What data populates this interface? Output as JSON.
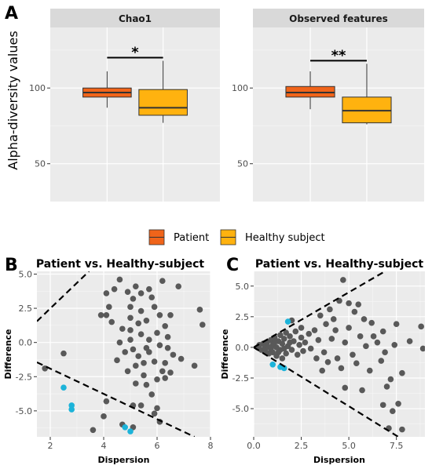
{
  "panel_labels": {
    "a": "A",
    "b": "B",
    "c": "C"
  },
  "legend": {
    "items": [
      {
        "label": "Patient",
        "color": "#f0641a"
      },
      {
        "label": "Healthy subject",
        "color": "#ffb20f"
      }
    ]
  },
  "chart_data": [
    {
      "type": "boxplot",
      "facet": "Chao1",
      "ylabel": "Alpha-diversity values",
      "ylim": [
        25,
        140
      ],
      "yticks": [
        50,
        100
      ],
      "significance": "*",
      "series": [
        {
          "name": "Patient",
          "color": "#f0641a",
          "whisker_low": 87,
          "q1": 94,
          "median": 97,
          "q3": 100,
          "whisker_high": 111
        },
        {
          "name": "Healthy subject",
          "color": "#ffb20f",
          "whisker_low": 77,
          "q1": 82,
          "median": 87,
          "q3": 99,
          "whisker_high": 118
        }
      ]
    },
    {
      "type": "boxplot",
      "facet": "Observed features",
      "ylim": [
        25,
        140
      ],
      "yticks": [
        50,
        100
      ],
      "significance": "**",
      "series": [
        {
          "name": "Patient",
          "color": "#f0641a",
          "whisker_low": 86,
          "q1": 94,
          "median": 97,
          "q3": 101,
          "whisker_high": 111
        },
        {
          "name": "Healthy subject",
          "color": "#ffb20f",
          "whisker_low": 76,
          "q1": 77,
          "median": 85,
          "q3": 94,
          "whisker_high": 116
        }
      ]
    },
    {
      "type": "scatter",
      "title": "Patient vs. Healthy-subject",
      "xlabel": "Dispersion",
      "ylabel": "Difference",
      "xlim": [
        1.5,
        8.0
      ],
      "ylim": [
        -6.9,
        5.2
      ],
      "xticks": [
        2,
        4,
        6,
        8
      ],
      "yticks": [
        -5.0,
        -2.5,
        0.0,
        2.5,
        5.0
      ],
      "ytick_labels": [
        "-5.0",
        "-2.5",
        "0.0",
        "2.5",
        "5.0"
      ],
      "reference_lines": [
        {
          "x1": 1.5,
          "y1": 1.55,
          "x2": 3.45,
          "y2": 5.2
        },
        {
          "x1": 1.5,
          "y1": -1.45,
          "x2": 7.4,
          "y2": -6.9
        }
      ],
      "colors": {
        "normal": "#595959",
        "highlight": "#1cb3d9"
      },
      "points": [
        [
          2.5,
          -0.8,
          0
        ],
        [
          1.8,
          -1.9,
          0
        ],
        [
          4.1,
          -4.3,
          0
        ],
        [
          4.0,
          -5.4,
          0
        ],
        [
          3.6,
          -6.4,
          0
        ],
        [
          5.1,
          -6.2,
          0
        ],
        [
          4.7,
          -6.0,
          0
        ],
        [
          6.1,
          -5.8,
          0
        ],
        [
          6.0,
          -4.8,
          0
        ],
        [
          5.9,
          -5.2,
          0
        ],
        [
          3.9,
          2.0,
          0
        ],
        [
          4.1,
          2.0,
          0
        ],
        [
          4.3,
          1.5,
          0
        ],
        [
          4.2,
          2.6,
          0
        ],
        [
          4.1,
          3.6,
          0
        ],
        [
          4.4,
          3.9,
          0
        ],
        [
          4.6,
          4.6,
          0
        ],
        [
          4.9,
          3.7,
          0
        ],
        [
          5.0,
          2.6,
          0
        ],
        [
          5.0,
          1.8,
          0
        ],
        [
          4.7,
          1.0,
          0
        ],
        [
          5.2,
          4.1,
          0
        ],
        [
          5.4,
          3.6,
          0
        ],
        [
          5.7,
          3.9,
          0
        ],
        [
          5.8,
          3.3,
          0
        ],
        [
          5.9,
          2.6,
          0
        ],
        [
          6.1,
          2.0,
          0
        ],
        [
          6.2,
          4.5,
          0
        ],
        [
          6.8,
          4.1,
          0
        ],
        [
          7.6,
          2.4,
          0
        ],
        [
          7.7,
          1.3,
          0
        ],
        [
          6.5,
          2.0,
          0
        ],
        [
          6.3,
          1.2,
          0
        ],
        [
          6.0,
          0.7,
          0
        ],
        [
          5.6,
          1.6,
          0
        ],
        [
          5.3,
          1.4,
          0
        ],
        [
          5.0,
          0.9,
          0
        ],
        [
          5.4,
          0.6,
          0
        ],
        [
          5.7,
          0.2,
          0
        ],
        [
          6.1,
          -0.2,
          0
        ],
        [
          6.4,
          -0.4,
          0
        ],
        [
          6.6,
          -0.9,
          0
        ],
        [
          6.9,
          -1.2,
          0
        ],
        [
          7.4,
          -1.7,
          0
        ],
        [
          5.0,
          0.2,
          0
        ],
        [
          4.6,
          0.0,
          0
        ],
        [
          4.5,
          -1.3,
          0
        ],
        [
          4.9,
          -2.1,
          0
        ],
        [
          5.2,
          -1.7,
          0
        ],
        [
          5.5,
          -2.4,
          0
        ],
        [
          5.3,
          -1.0,
          0
        ],
        [
          5.7,
          -0.7,
          0
        ],
        [
          5.9,
          -1.4,
          0
        ],
        [
          6.2,
          -2.1,
          0
        ],
        [
          6.3,
          -2.6,
          0
        ],
        [
          6.0,
          -2.7,
          0
        ],
        [
          5.6,
          -3.1,
          0
        ],
        [
          5.8,
          -3.8,
          0
        ],
        [
          5.4,
          -4.6,
          0
        ],
        [
          5.1,
          -4.6,
          0
        ],
        [
          5.6,
          -0.4,
          0
        ],
        [
          6.4,
          0.4,
          0
        ],
        [
          5.1,
          -0.5,
          0
        ],
        [
          4.8,
          -0.7,
          0
        ],
        [
          5.5,
          -1.5,
          0
        ],
        [
          6.3,
          -1.5,
          0
        ],
        [
          5.2,
          -3.0,
          0
        ],
        [
          6.5,
          -2.2,
          0
        ],
        [
          5.4,
          2.3,
          0
        ],
        [
          5.1,
          3.2,
          0
        ],
        [
          2.5,
          -3.3,
          1
        ],
        [
          2.8,
          -4.6,
          1
        ],
        [
          2.8,
          -4.9,
          1
        ],
        [
          4.8,
          -6.2,
          1
        ],
        [
          5.0,
          -6.5,
          1
        ]
      ]
    },
    {
      "type": "scatter",
      "title": "Patient vs. Healthy-subject",
      "xlabel": "Dispersion",
      "ylabel": "Difference",
      "xlim": [
        0.0,
        9.0
      ],
      "ylim": [
        -7.3,
        6.2
      ],
      "xticks": [
        0.0,
        2.5,
        5.0,
        7.5
      ],
      "xtick_labels": [
        "0.0",
        "2.5",
        "5.0",
        "7.5"
      ],
      "yticks": [
        -5.0,
        -2.5,
        0.0,
        2.5,
        5.0
      ],
      "ytick_labels": [
        "-5.0",
        "-2.5",
        "0.0",
        "2.5",
        "5.0"
      ],
      "reference_lines": [
        {
          "x1": 0.0,
          "y1": 0.0,
          "x2": 6.9,
          "y2": 6.2
        },
        {
          "x1": 0.0,
          "y1": 0.0,
          "x2": 7.6,
          "y2": -7.3
        }
      ],
      "colors": {
        "normal": "#595959",
        "highlight": "#1cb3d9"
      },
      "points": [
        [
          0.2,
          0.0,
          0
        ],
        [
          0.3,
          0.2,
          0
        ],
        [
          0.4,
          -0.2,
          0
        ],
        [
          0.5,
          0.3,
          0
        ],
        [
          0.6,
          0.1,
          0
        ],
        [
          0.6,
          -0.3,
          0
        ],
        [
          0.7,
          0.4,
          0
        ],
        [
          0.8,
          0.0,
          0
        ],
        [
          0.8,
          -0.5,
          0
        ],
        [
          0.9,
          0.6,
          0
        ],
        [
          1.0,
          0.2,
          0
        ],
        [
          1.0,
          -0.4,
          0
        ],
        [
          1.1,
          0.8,
          0
        ],
        [
          1.2,
          0.0,
          0
        ],
        [
          1.2,
          -0.7,
          0
        ],
        [
          1.3,
          0.5,
          0
        ],
        [
          1.4,
          1.0,
          0
        ],
        [
          1.4,
          -0.2,
          0
        ],
        [
          1.5,
          0.3,
          0
        ],
        [
          1.5,
          -0.9,
          0
        ],
        [
          1.6,
          0.7,
          0
        ],
        [
          1.7,
          1.2,
          0
        ],
        [
          1.7,
          -0.5,
          0
        ],
        [
          1.8,
          0.1,
          0
        ],
        [
          1.9,
          0.9,
          0
        ],
        [
          2.0,
          -0.2,
          0
        ],
        [
          2.1,
          0.5,
          0
        ],
        [
          2.2,
          1.3,
          0
        ],
        [
          2.3,
          -0.6,
          0
        ],
        [
          2.4,
          0.2,
          0
        ],
        [
          2.5,
          0.8,
          0
        ],
        [
          2.6,
          -0.3,
          0
        ],
        [
          2.7,
          0.4,
          0
        ],
        [
          2.9,
          1.1,
          0
        ],
        [
          3.0,
          -0.1,
          0
        ],
        [
          0.9,
          -0.1,
          0
        ],
        [
          1.1,
          0.4,
          0
        ],
        [
          1.3,
          -0.4,
          0
        ],
        [
          1.6,
          -0.1,
          0
        ],
        [
          1.9,
          0.4,
          0
        ],
        [
          2.0,
          2.2,
          0
        ],
        [
          2.5,
          1.6,
          0
        ],
        [
          3.2,
          1.4,
          0
        ],
        [
          3.5,
          2.6,
          0
        ],
        [
          3.8,
          1.9,
          0
        ],
        [
          4.0,
          3.1,
          0
        ],
        [
          4.2,
          2.3,
          0
        ],
        [
          4.5,
          3.8,
          0
        ],
        [
          4.7,
          5.5,
          0
        ],
        [
          5.0,
          3.6,
          0
        ],
        [
          5.5,
          3.5,
          0
        ],
        [
          5.3,
          2.9,
          0
        ],
        [
          5.8,
          2.3,
          0
        ],
        [
          6.2,
          2.0,
          0
        ],
        [
          6.8,
          1.3,
          0
        ],
        [
          7.5,
          1.9,
          0
        ],
        [
          8.8,
          1.7,
          0
        ],
        [
          8.2,
          0.5,
          0
        ],
        [
          7.4,
          0.2,
          0
        ],
        [
          6.9,
          -0.4,
          0
        ],
        [
          6.3,
          0.9,
          0
        ],
        [
          5.9,
          0.1,
          0
        ],
        [
          5.2,
          -0.6,
          0
        ],
        [
          4.8,
          0.4,
          0
        ],
        [
          4.4,
          -0.9,
          0
        ],
        [
          4.1,
          0.7,
          0
        ],
        [
          3.7,
          -0.4,
          0
        ],
        [
          3.4,
          0.6,
          0
        ],
        [
          3.9,
          -1.2,
          0
        ],
        [
          4.6,
          -1.7,
          0
        ],
        [
          5.4,
          -1.3,
          0
        ],
        [
          6.1,
          -1.9,
          0
        ],
        [
          6.7,
          -1.1,
          0
        ],
        [
          7.2,
          -2.6,
          0
        ],
        [
          7.8,
          -2.1,
          0
        ],
        [
          7.0,
          -3.2,
          0
        ],
        [
          7.6,
          -4.6,
          0
        ],
        [
          7.3,
          -5.2,
          0
        ],
        [
          7.8,
          -6.7,
          0
        ],
        [
          7.1,
          -6.6,
          0
        ],
        [
          6.8,
          -4.7,
          0
        ],
        [
          5.7,
          -3.5,
          0
        ],
        [
          4.8,
          -3.3,
          0
        ],
        [
          3.6,
          -1.9,
          0
        ],
        [
          3.3,
          -0.9,
          0
        ],
        [
          5.0,
          1.6,
          0
        ],
        [
          5.6,
          0.9,
          0
        ],
        [
          6.5,
          0.4,
          0
        ],
        [
          8.9,
          -0.1,
          0
        ],
        [
          4.3,
          1.4,
          0
        ],
        [
          1.8,
          2.1,
          1
        ],
        [
          1.0,
          -1.4,
          1
        ],
        [
          1.4,
          -1.6,
          1
        ],
        [
          1.6,
          -1.7,
          1
        ]
      ]
    }
  ]
}
